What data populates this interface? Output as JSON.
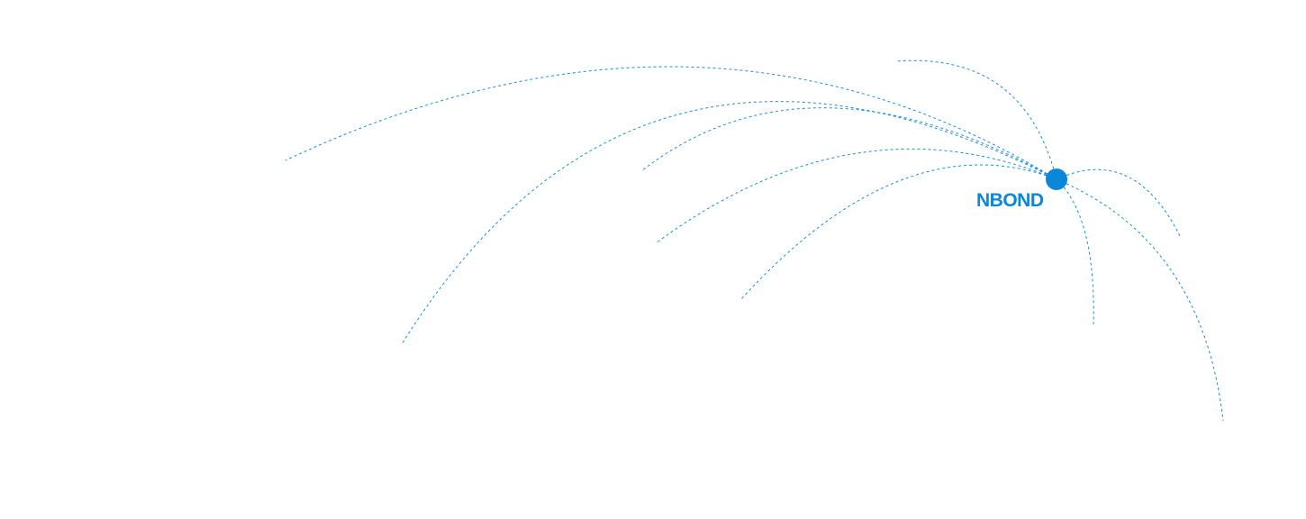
{
  "hub": {
    "label": "NBOND",
    "color": "#0a87d9"
  },
  "line_color": "#1a8fdc"
}
